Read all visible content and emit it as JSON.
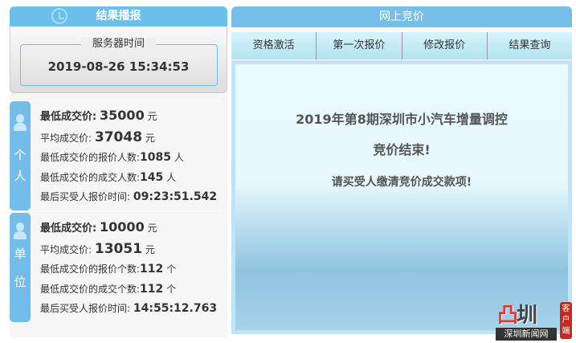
{
  "left": {
    "title": "结果播报",
    "icon": "clock-refresh-icon",
    "server_time_label": "服务器时间",
    "server_time": "2019-08-26 15:34:53",
    "personal": {
      "side_label": [
        "个",
        "人"
      ],
      "min_price_label": "最低成交价:",
      "min_price": "35000",
      "unit": "元",
      "avg_price_label": "平均成交价:",
      "avg_price": "37048",
      "bidders_label": "最低成交价的报价人数:",
      "bidders": "1085",
      "bidders_unit": "人",
      "deals_label": "最低成交价的成交人数:",
      "deals": "145",
      "deals_unit": "人",
      "last_time_label": "最后买受人报价时间:",
      "last_time": "09:23:51.542"
    },
    "company": {
      "side_label": [
        "单",
        "位"
      ],
      "min_price_label": "最低成交价:",
      "min_price": "10000",
      "unit": "元",
      "avg_price_label": "平均成交价:",
      "avg_price": "13051",
      "bidders_label": "最低成交价的报价个数:",
      "bidders": "112",
      "bidders_unit": "个",
      "deals_label": "最低成交价的成交个数:",
      "deals": "112",
      "deals_unit": "个",
      "last_time_label": "最后买受人报价时间:",
      "last_time": "14:55:12.763"
    }
  },
  "right": {
    "title": "网上竞价",
    "tabs": [
      "资格激活",
      "第一次报价",
      "修改报价",
      "结果查询"
    ],
    "message": {
      "line1": "2019年第8期深圳市小汽车增量调控",
      "line2": "竞价结束!",
      "line3": "请买受人缴清竞价成交款项!"
    }
  },
  "logo": {
    "text": "深圳",
    "subtitle": "深圳新闻网",
    "tag": "客户端"
  }
}
